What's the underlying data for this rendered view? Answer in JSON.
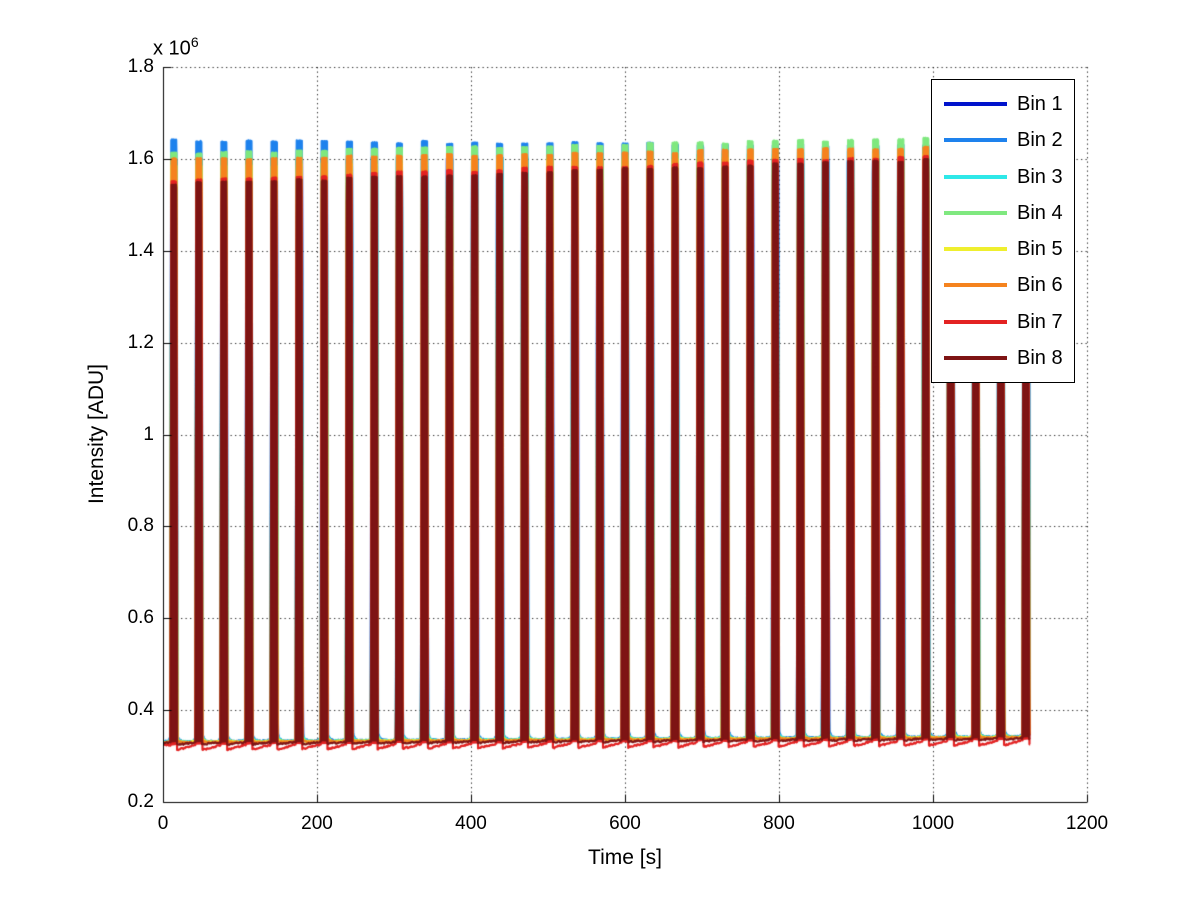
{
  "figure": {
    "background": "#ffffff"
  },
  "chart_data": {
    "type": "line",
    "title": "",
    "xlabel": "Time [s]",
    "ylabel": "Intensity [ADU]",
    "y_multiplier_label": "x 10",
    "y_multiplier_exponent": "6",
    "xlim": [
      0,
      1200
    ],
    "ylim_adu": [
      200000,
      1800000
    ],
    "x_ticks": [
      "0",
      "200",
      "400",
      "600",
      "800",
      "1000",
      "1200"
    ],
    "x_tick_values": [
      0,
      200,
      400,
      600,
      800,
      1000,
      1200
    ],
    "y_ticks": [
      "0.2",
      "0.4",
      "0.6",
      "0.8",
      "1",
      "1.2",
      "1.4",
      "1.6",
      "1.8"
    ],
    "y_tick_values_adu": [
      200000,
      400000,
      600000,
      800000,
      1000000,
      1200000,
      1400000,
      1600000,
      1800000
    ],
    "grid": "dotted",
    "axis_color": "#000000",
    "legend": {
      "position": "top-right",
      "entries": [
        {
          "label": "Bin 1",
          "color": "#0013CC"
        },
        {
          "label": "Bin 2",
          "color": "#1E82ED"
        },
        {
          "label": "Bin 3",
          "color": "#2EE8E8"
        },
        {
          "label": "Bin 4",
          "color": "#7FE87F"
        },
        {
          "label": "Bin 5",
          "color": "#EFEF2E"
        },
        {
          "label": "Bin 6",
          "color": "#F5831E"
        },
        {
          "label": "Bin 7",
          "color": "#E32222"
        },
        {
          "label": "Bin 8",
          "color": "#7E1414"
        }
      ]
    },
    "description": "Periodic square intensity pulses for 8 detector bins; baseline ~0.33e6 ADU slowly rising, pulse plateaus ~1.55-1.64e6 ADU. After each pulse the baselines of bins 1-6 show a small decaying overshoot (colored speckles) while bins 7-8 dip and recover.",
    "pulses": {
      "first_center_s": 14,
      "period_s": 32.55,
      "count": 35,
      "on_duration_s": 8.4,
      "edge_s": 1.2,
      "data_end_s": 1126,
      "peak_jitter_adu": 3000
    },
    "series": [
      {
        "name": "Bin 1",
        "color": "#0013CC",
        "baseline_adu_start": 330500,
        "baseline_adu_end": 341500,
        "peak_adu_start": 1600000,
        "peak_adu_end": 1600000,
        "post_pulse_bump_adu": 5000,
        "post_pulse_dip_adu": 0
      },
      {
        "name": "Bin 2",
        "color": "#1E82ED",
        "baseline_adu_start": 331500,
        "baseline_adu_end": 342500,
        "peak_adu_start": 1640000,
        "peak_adu_end": 1625000,
        "post_pulse_bump_adu": 17000,
        "post_pulse_dip_adu": 0
      },
      {
        "name": "Bin 3",
        "color": "#2EE8E8",
        "baseline_adu_start": 331000,
        "baseline_adu_end": 342000,
        "peak_adu_start": 1595000,
        "peak_adu_end": 1620000,
        "post_pulse_bump_adu": 13000,
        "post_pulse_dip_adu": 0
      },
      {
        "name": "Bin 4",
        "color": "#7FE87F",
        "baseline_adu_start": 330500,
        "baseline_adu_end": 341500,
        "peak_adu_start": 1610000,
        "peak_adu_end": 1648000,
        "post_pulse_bump_adu": 10000,
        "post_pulse_dip_adu": 0
      },
      {
        "name": "Bin 5",
        "color": "#EFEF2E",
        "baseline_adu_start": 330000,
        "baseline_adu_end": 341000,
        "peak_adu_start": 1583000,
        "peak_adu_end": 1613000,
        "post_pulse_bump_adu": 7000,
        "post_pulse_dip_adu": 0
      },
      {
        "name": "Bin 6",
        "color": "#F5831E",
        "baseline_adu_start": 329500,
        "baseline_adu_end": 340500,
        "peak_adu_start": 1597000,
        "peak_adu_end": 1627000,
        "post_pulse_bump_adu": 4000,
        "post_pulse_dip_adu": 0
      },
      {
        "name": "Bin 7",
        "color": "#E32222",
        "baseline_adu_start": 324000,
        "baseline_adu_end": 335000,
        "peak_adu_start": 1552000,
        "peak_adu_end": 1612000,
        "post_pulse_bump_adu": 0,
        "post_pulse_dip_adu": 11000
      },
      {
        "name": "Bin 8",
        "color": "#7E1414",
        "baseline_adu_start": 329000,
        "baseline_adu_end": 340000,
        "peak_adu_start": 1544000,
        "peak_adu_end": 1604000,
        "post_pulse_bump_adu": 0,
        "post_pulse_dip_adu": 4500
      }
    ]
  }
}
